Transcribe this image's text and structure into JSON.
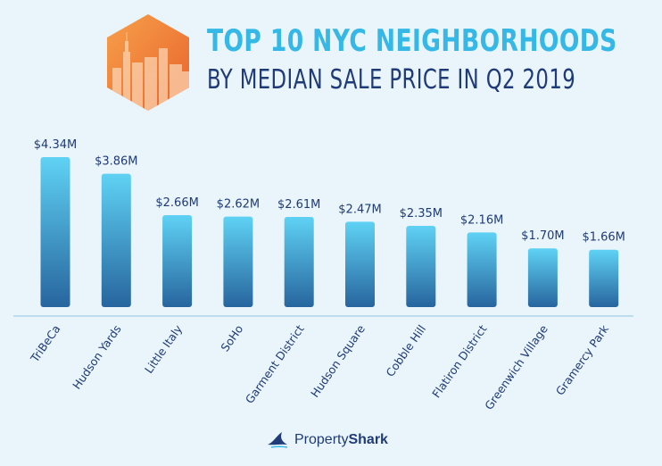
{
  "title": {
    "line1": "TOP 10 NYC NEIGHBORHOODS",
    "line2": "BY MEDIAN SALE PRICE IN Q2 2019"
  },
  "colors": {
    "bar_top": "#5fd2f4",
    "bar_bottom": "#27659e",
    "title_accent": "#35b8e6",
    "title_dark": "#1f3b78",
    "axis": "#8fc5e6",
    "background": "#e9f4fb"
  },
  "chart_data": {
    "type": "bar",
    "categories": [
      "TriBeCa",
      "Hudson Yards",
      "Little Italy",
      "SoHo",
      "Garment District",
      "Hudson Square",
      "Cobble Hill",
      "Flatiron District",
      "Greenwich Village",
      "Gramercy Park"
    ],
    "values": [
      4.34,
      3.86,
      2.66,
      2.62,
      2.61,
      2.47,
      2.35,
      2.16,
      1.7,
      1.66
    ],
    "value_labels": [
      "$4.34M",
      "$3.86M",
      "$2.66M",
      "$2.62M",
      "$2.61M",
      "$2.47M",
      "$2.35M",
      "$2.16M",
      "$1.70M",
      "$1.66M"
    ],
    "ylim": [
      0,
      4.34
    ],
    "grid": false,
    "legend": "none"
  },
  "footer": {
    "brand_regular": "Property",
    "brand_bold": "Shark",
    "logo_icon": "shark-fin-icon"
  },
  "header_icon": "city-skyline-hexagon-icon"
}
